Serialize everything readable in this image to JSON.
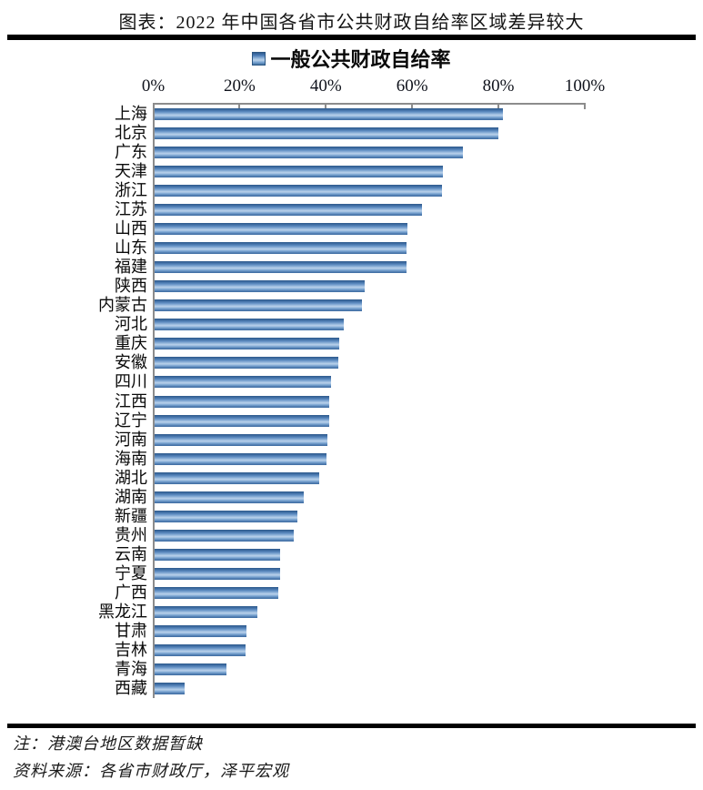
{
  "header": {
    "title": "图表：2022 年中国各省市公共财政自给率区域差异较大"
  },
  "legend": {
    "label": "一般公共财政自给率",
    "marker_color": "#4f81bd"
  },
  "chart_data": {
    "type": "bar",
    "orientation": "horizontal",
    "title": "一般公共财政自给率",
    "categories": [
      "上海",
      "北京",
      "广东",
      "天津",
      "浙江",
      "江苏",
      "山西",
      "山东",
      "福建",
      "陕西",
      "内蒙古",
      "河北",
      "重庆",
      "安徽",
      "四川",
      "江西",
      "辽宁",
      "河南",
      "海南",
      "湖北",
      "湖南",
      "新疆",
      "贵州",
      "云南",
      "宁夏",
      "广西",
      "黑龙江",
      "甘肃",
      "吉林",
      "青海",
      "西藏"
    ],
    "values": [
      81.0,
      80.0,
      71.7,
      67.1,
      66.9,
      62.2,
      58.8,
      58.6,
      58.6,
      48.9,
      48.3,
      43.9,
      43.0,
      42.8,
      41.1,
      40.5,
      40.5,
      40.1,
      39.9,
      38.3,
      34.6,
      33.1,
      32.3,
      29.1,
      29.1,
      28.7,
      23.9,
      21.3,
      21.1,
      16.7,
      7.0
    ],
    "value_unit": "%",
    "x_ticks": [
      "0%",
      "20%",
      "40%",
      "60%",
      "80%",
      "100%"
    ],
    "xlim": [
      0,
      100
    ],
    "grid": false,
    "legend_position": "top",
    "bar_color": "#4f81bd",
    "axis_color": "#8c8c8c"
  },
  "footer": {
    "note": "注：港澳台地区数据暂缺",
    "source": "资料来源：各省市财政厅，泽平宏观"
  }
}
